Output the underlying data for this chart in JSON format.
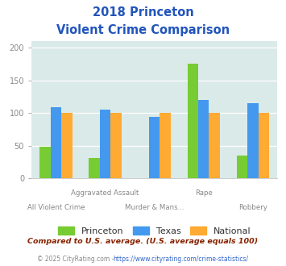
{
  "title_line1": "2018 Princeton",
  "title_line2": "Violent Crime Comparison",
  "categories": [
    "All Violent Crime",
    "Aggravated Assault",
    "Murder & Mans...",
    "Rape",
    "Robbery"
  ],
  "series": {
    "Princeton": [
      48,
      31,
      0,
      175,
      35
    ],
    "Texas": [
      109,
      105,
      94,
      120,
      115
    ],
    "National": [
      100,
      100,
      100,
      100,
      100
    ]
  },
  "colors": {
    "Princeton": "#77cc33",
    "Texas": "#4499ee",
    "National": "#ffaa33"
  },
  "ylim": [
    0,
    210
  ],
  "yticks": [
    0,
    50,
    100,
    150,
    200
  ],
  "plot_bg_color": "#daeae8",
  "title_color": "#2255bb",
  "footnote1": "Compared to U.S. average. (U.S. average equals 100)",
  "footnote1_color": "#882200",
  "footnote2_text": "© 2025 CityRating.com - ",
  "footnote2_url": "https://www.cityrating.com/crime-statistics/",
  "footnote2_color": "#888888",
  "footnote2_url_color": "#3366cc",
  "xtick_color": "#888888",
  "ytick_color": "#888888"
}
